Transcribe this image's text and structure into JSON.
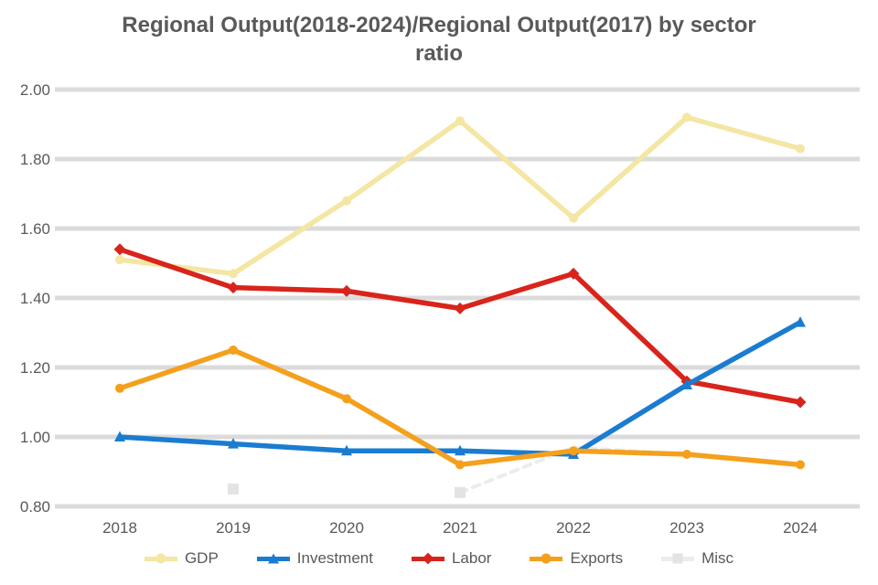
{
  "title": {
    "line1": "Regional Output(2018-2024)/Regional Output(2017) by sector",
    "line2": "ratio"
  },
  "palette": {
    "text": "#595959",
    "grid": "#DBDBDB",
    "background": "#FFFFFF"
  },
  "chart_data": {
    "type": "line",
    "title": "Regional Output(2018-2024)/Regional Output(2017) by sector ratio",
    "categories": [
      "2018",
      "2019",
      "2020",
      "2021",
      "2022",
      "2023",
      "2024"
    ],
    "series": [
      {
        "name": "GDP",
        "color": "#F4E6A3",
        "marker": "circle",
        "line_style": "solid",
        "values": [
          1.51,
          1.47,
          1.68,
          1.91,
          1.63,
          1.92,
          1.83
        ]
      },
      {
        "name": "Investment",
        "color": "#1A7CD1",
        "marker": "triangle",
        "line_style": "solid",
        "values": [
          1.0,
          0.98,
          0.96,
          0.96,
          0.95,
          1.15,
          1.33
        ]
      },
      {
        "name": "Labor",
        "color": "#D9241B",
        "marker": "diamond",
        "line_style": "solid",
        "values": [
          1.54,
          1.43,
          1.42,
          1.37,
          1.47,
          1.16,
          1.1
        ]
      },
      {
        "name": "Exports",
        "color": "#F4A01D",
        "marker": "circle",
        "line_style": "solid",
        "values": [
          1.14,
          1.25,
          1.11,
          0.92,
          0.96,
          0.95,
          0.92
        ]
      },
      {
        "name": "Misc",
        "color": "#ECECEC",
        "marker": "square",
        "marker_color": "#E3E3E3",
        "marker_indices": [
          1,
          3
        ],
        "line_style": "dashed",
        "values": [
          null,
          0.85,
          null,
          0.84,
          0.97,
          0.95,
          0.92
        ]
      }
    ],
    "y_axis": {
      "min": 0.8,
      "max": 2.0,
      "step": 0.2,
      "tick_labels_top_to_bottom": [
        "2.00",
        "1.80",
        "1.60",
        "1.40",
        "1.20",
        "1.00",
        "0.80"
      ]
    },
    "grid": "horizontal",
    "legend_position": "bottom"
  }
}
